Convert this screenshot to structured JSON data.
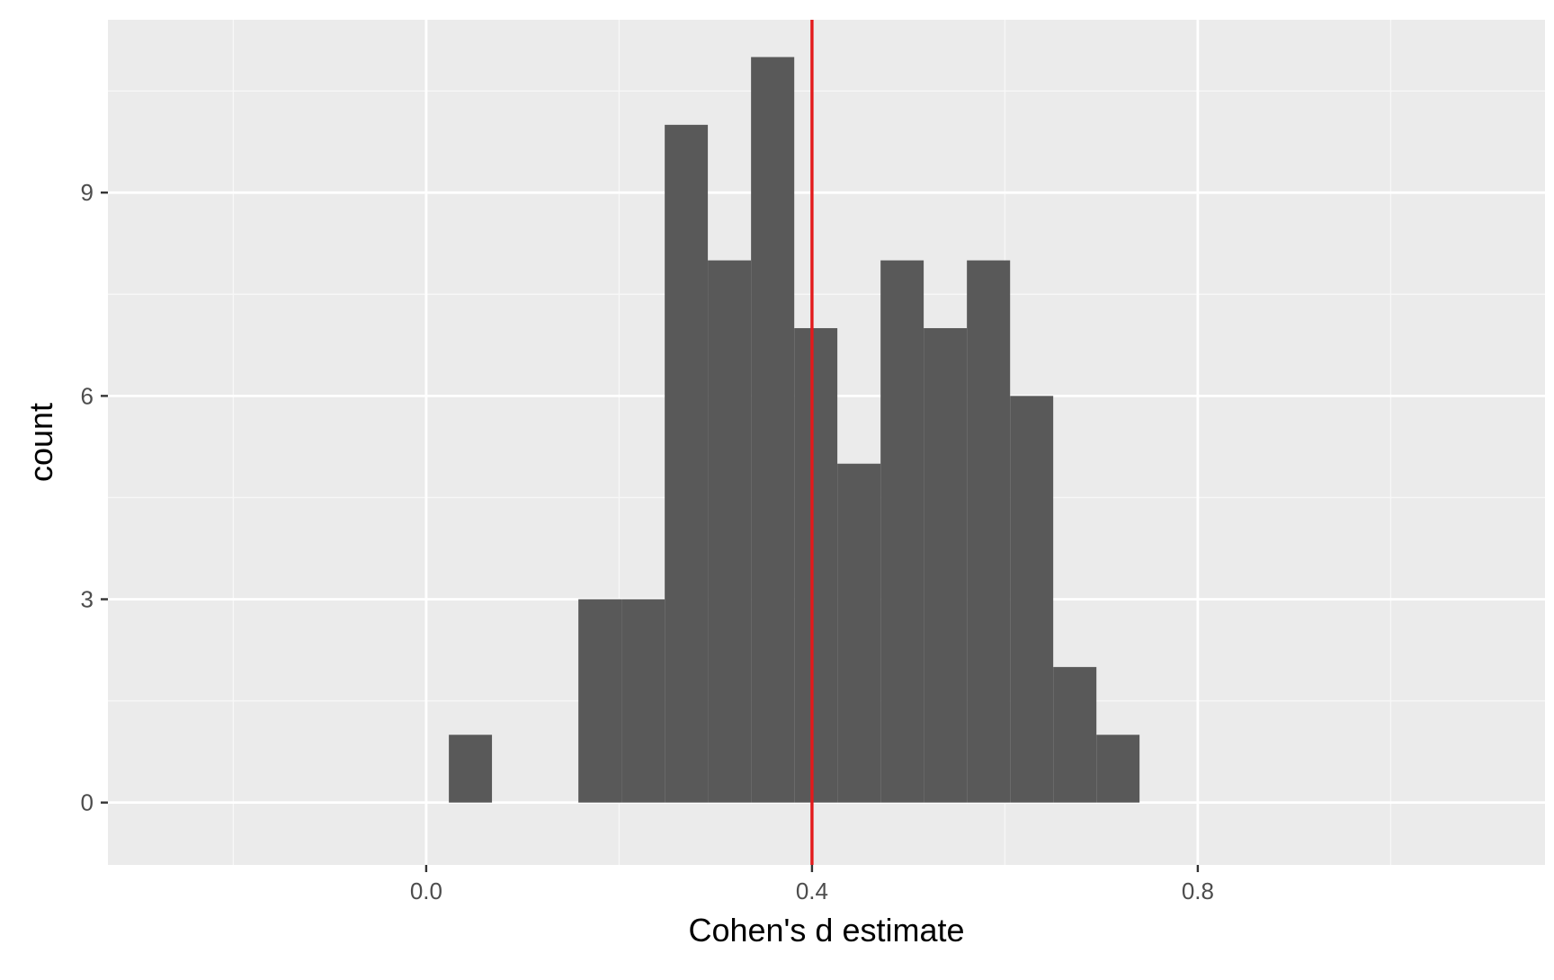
{
  "chart_data": {
    "type": "bar",
    "subtype": "histogram",
    "title": "",
    "xlabel": "Cohen's d estimate",
    "ylabel": "count",
    "xlim": [
      -0.33,
      1.16
    ],
    "ylim": [
      -0.92,
      11.55
    ],
    "x_ticks": [
      {
        "value": 0.0,
        "label": "0.0"
      },
      {
        "value": 0.4,
        "label": "0.4"
      },
      {
        "value": 0.8,
        "label": "0.8"
      }
    ],
    "x_minor_gridlines": [
      -0.2,
      0.2,
      0.6,
      1.0
    ],
    "y_ticks": [
      {
        "value": 0,
        "label": "0"
      },
      {
        "value": 3,
        "label": "3"
      },
      {
        "value": 6,
        "label": "6"
      },
      {
        "value": 9,
        "label": "9"
      }
    ],
    "y_minor_gridlines": [
      1.5,
      4.5,
      7.5,
      10.5
    ],
    "bins": [
      {
        "x0": 0.0235,
        "x1": 0.0682,
        "count": 1
      },
      {
        "x0": 0.0682,
        "x1": 0.113,
        "count": 0
      },
      {
        "x0": 0.113,
        "x1": 0.1578,
        "count": 0
      },
      {
        "x0": 0.1578,
        "x1": 0.2025,
        "count": 3
      },
      {
        "x0": 0.2025,
        "x1": 0.2473,
        "count": 3
      },
      {
        "x0": 0.2473,
        "x1": 0.292,
        "count": 10
      },
      {
        "x0": 0.292,
        "x1": 0.3368,
        "count": 8
      },
      {
        "x0": 0.3368,
        "x1": 0.3816,
        "count": 11
      },
      {
        "x0": 0.3816,
        "x1": 0.4263,
        "count": 7
      },
      {
        "x0": 0.4263,
        "x1": 0.4711,
        "count": 5
      },
      {
        "x0": 0.4711,
        "x1": 0.5158,
        "count": 8
      },
      {
        "x0": 0.5158,
        "x1": 0.5606,
        "count": 7
      },
      {
        "x0": 0.5606,
        "x1": 0.6054,
        "count": 8
      },
      {
        "x0": 0.6054,
        "x1": 0.6501,
        "count": 6
      },
      {
        "x0": 0.6501,
        "x1": 0.6949,
        "count": 2
      },
      {
        "x0": 0.6949,
        "x1": 0.7396,
        "count": 1
      }
    ],
    "reference_line": {
      "orientation": "vertical",
      "x": 0.4,
      "color": "#e31a1c"
    },
    "colors": {
      "panel_background": "#ebebeb",
      "grid_major": "#ffffff",
      "grid_minor": "#f7f7f7",
      "bar_fill": "#595959",
      "tick_text": "#4d4d4d",
      "axis_title": "#000000"
    },
    "grid": true,
    "legend": "none"
  }
}
